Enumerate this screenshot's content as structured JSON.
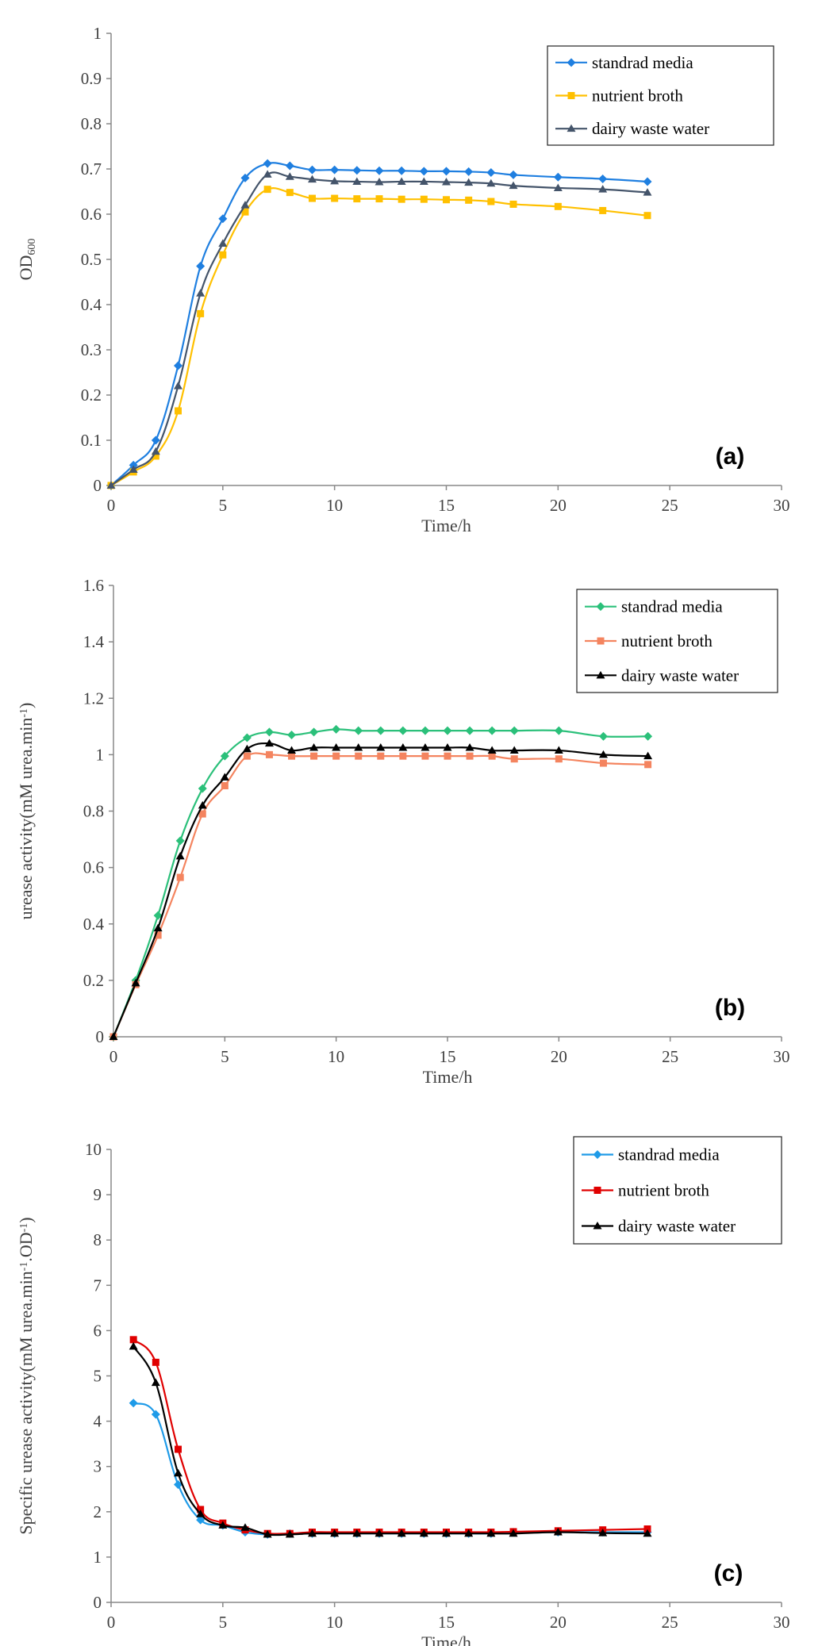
{
  "chart_data": [
    {
      "type": "line",
      "panel_label": "(a)",
      "xlabel": "Time/h",
      "ylabel": "OD",
      "ylabel_sub": "600",
      "xlim": [
        0,
        30
      ],
      "ylim": [
        0,
        1
      ],
      "xticks": [
        0,
        5,
        10,
        15,
        20,
        25,
        30
      ],
      "yticks": [
        0,
        0.1,
        0.2,
        0.3,
        0.4,
        0.5,
        0.6,
        0.7,
        0.8,
        0.9,
        1
      ],
      "legend_position": "top-right",
      "x": [
        0,
        1,
        2,
        3,
        4,
        5,
        6,
        7,
        8,
        9,
        10,
        11,
        12,
        13,
        14,
        15,
        16,
        17,
        18,
        20,
        22,
        24
      ],
      "series": [
        {
          "name": "standrad media",
          "color": "#1f7fe0",
          "marker": "diamond",
          "values": [
            0,
            0.045,
            0.1,
            0.265,
            0.485,
            0.59,
            0.68,
            0.712,
            0.707,
            0.698,
            0.698,
            0.697,
            0.696,
            0.696,
            0.695,
            0.695,
            0.694,
            0.692,
            0.687,
            0.682,
            0.678,
            0.672
          ]
        },
        {
          "name": "nutrient broth",
          "color": "#ffc000",
          "marker": "square",
          "values": [
            0,
            0.03,
            0.065,
            0.165,
            0.38,
            0.51,
            0.605,
            0.655,
            0.648,
            0.635,
            0.635,
            0.634,
            0.634,
            0.633,
            0.633,
            0.632,
            0.631,
            0.628,
            0.622,
            0.617,
            0.608,
            0.597
          ]
        },
        {
          "name": "dairy waste water",
          "color": "#44546a",
          "marker": "triangle",
          "values": [
            0,
            0.035,
            0.075,
            0.22,
            0.425,
            0.535,
            0.62,
            0.688,
            0.683,
            0.677,
            0.673,
            0.672,
            0.671,
            0.672,
            0.672,
            0.671,
            0.67,
            0.668,
            0.663,
            0.658,
            0.655,
            0.648
          ]
        }
      ]
    },
    {
      "type": "line",
      "panel_label": "(b)",
      "xlabel": "Time/h",
      "ylabel": "urease activity(mM urea.min",
      "ylabel_sup": "-1",
      "ylabel_end": ")",
      "xlim": [
        0,
        30
      ],
      "ylim": [
        0,
        1.6
      ],
      "xticks": [
        0,
        5,
        10,
        15,
        20,
        25,
        30
      ],
      "yticks": [
        0,
        0.2,
        0.4,
        0.6,
        0.8,
        1,
        1.2,
        1.4,
        1.6
      ],
      "legend_position": "top-right",
      "x": [
        0,
        1,
        2,
        3,
        4,
        5,
        6,
        7,
        8,
        9,
        10,
        11,
        12,
        13,
        14,
        15,
        16,
        17,
        18,
        20,
        22,
        24
      ],
      "series": [
        {
          "name": "standrad media",
          "color": "#2bc07a",
          "marker": "diamond",
          "values": [
            0,
            0.2,
            0.43,
            0.695,
            0.88,
            0.995,
            1.06,
            1.08,
            1.07,
            1.08,
            1.09,
            1.085,
            1.085,
            1.085,
            1.085,
            1.085,
            1.085,
            1.085,
            1.085,
            1.085,
            1.065,
            1.065
          ]
        },
        {
          "name": "nutrient broth",
          "color": "#f4845f",
          "marker": "square",
          "values": [
            0,
            0.185,
            0.36,
            0.565,
            0.79,
            0.89,
            0.995,
            1.0,
            0.995,
            0.995,
            0.995,
            0.995,
            0.995,
            0.995,
            0.995,
            0.995,
            0.995,
            0.995,
            0.985,
            0.985,
            0.97,
            0.965
          ]
        },
        {
          "name": "dairy waste water",
          "color": "#000000",
          "marker": "triangle",
          "values": [
            0,
            0.19,
            0.385,
            0.64,
            0.82,
            0.92,
            1.02,
            1.04,
            1.015,
            1.025,
            1.025,
            1.025,
            1.025,
            1.025,
            1.025,
            1.025,
            1.025,
            1.015,
            1.015,
            1.015,
            1.0,
            0.995
          ]
        }
      ]
    },
    {
      "type": "line",
      "panel_label": "(c)",
      "xlabel": "Time/h",
      "ylabel": "Specific urease activity(mM urea.min",
      "ylabel_sup": "-1",
      "ylabel_mid": ".OD",
      "ylabel_sup2": "-1",
      "ylabel_end": ")",
      "xlim": [
        0,
        30
      ],
      "ylim": [
        0,
        10
      ],
      "xticks": [
        0,
        5,
        10,
        15,
        20,
        25,
        30
      ],
      "yticks": [
        0,
        1,
        2,
        3,
        4,
        5,
        6,
        7,
        8,
        9,
        10
      ],
      "legend_position": "top-right",
      "x": [
        1,
        2,
        3,
        4,
        5,
        6,
        7,
        8,
        9,
        10,
        11,
        12,
        13,
        14,
        15,
        16,
        17,
        18,
        20,
        22,
        24
      ],
      "series": [
        {
          "name": "standrad media",
          "color": "#1f9be8",
          "marker": "diamond",
          "values": [
            4.4,
            4.15,
            2.6,
            1.82,
            1.7,
            1.55,
            1.5,
            1.52,
            1.52,
            1.52,
            1.52,
            1.52,
            1.52,
            1.52,
            1.52,
            1.52,
            1.52,
            1.55,
            1.55,
            1.55,
            1.55
          ]
        },
        {
          "name": "nutrient broth",
          "color": "#e00000",
          "marker": "square",
          "values": [
            5.8,
            5.3,
            3.38,
            2.05,
            1.75,
            1.6,
            1.52,
            1.52,
            1.55,
            1.55,
            1.55,
            1.55,
            1.55,
            1.55,
            1.55,
            1.55,
            1.55,
            1.56,
            1.58,
            1.6,
            1.62
          ]
        },
        {
          "name": "dairy waste water",
          "color": "#000000",
          "marker": "triangle",
          "values": [
            5.65,
            4.85,
            2.85,
            1.95,
            1.7,
            1.65,
            1.5,
            1.5,
            1.52,
            1.52,
            1.52,
            1.52,
            1.52,
            1.52,
            1.52,
            1.52,
            1.52,
            1.52,
            1.55,
            1.53,
            1.52
          ]
        }
      ]
    }
  ]
}
